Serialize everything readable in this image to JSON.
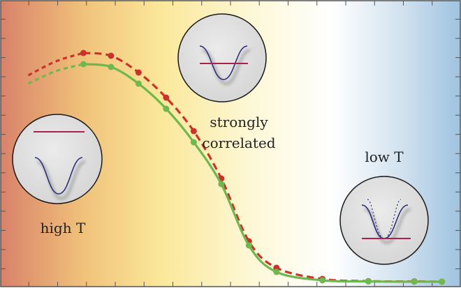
{
  "chart_data": {
    "type": "line",
    "title": "",
    "xlabel": "",
    "ylabel": "",
    "grid": false,
    "xlim": [
      0,
      25
    ],
    "ylim": [
      0,
      1
    ],
    "background_gradient": [
      "#d9826a",
      "#f0c27a",
      "#fbe89a",
      "#fdf8d8",
      "#ffffff",
      "#cfe0ee",
      "#9fc3e1"
    ],
    "series": [
      {
        "color": "#c9342a",
        "style": "dashed",
        "x": [
          4.5,
          6,
          7.5,
          9,
          10.5,
          12,
          13.5,
          15,
          17.5,
          20,
          22.5,
          24
        ],
        "y": [
          0.82,
          0.81,
          0.75,
          0.66,
          0.54,
          0.37,
          0.145,
          0.05,
          0.01,
          0.002,
          0.001,
          0.0
        ],
        "prefix_x": [
          1.5,
          3,
          4.5
        ],
        "prefix_y": [
          0.74,
          0.79,
          0.82
        ]
      },
      {
        "color": "#6fb84f",
        "style": "solid",
        "x": [
          4.5,
          6,
          7.5,
          9,
          10.5,
          12,
          13.5,
          15,
          17.5,
          20,
          22.5,
          24
        ],
        "y": [
          0.78,
          0.77,
          0.71,
          0.62,
          0.5,
          0.35,
          0.13,
          0.035,
          0.005,
          0.001,
          0.0,
          0.0
        ],
        "prefix_x": [
          1.5,
          3,
          4.5
        ],
        "prefix_y": [
          0.71,
          0.755,
          0.78
        ]
      }
    ],
    "annotations": [
      "strongly",
      "correlated",
      "low T",
      "high T"
    ],
    "insets": [
      "high T",
      "strongly correlated",
      "low T"
    ]
  },
  "labels": {
    "strongly": "strongly",
    "correlated": "correlated",
    "low_t": "low T",
    "high_t": "high T"
  }
}
